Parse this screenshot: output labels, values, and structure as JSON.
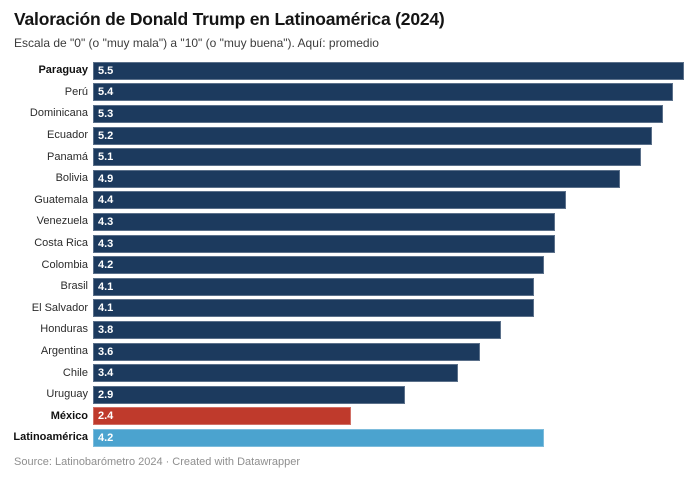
{
  "header": {
    "title": "Valoración de Donald Trump en Latinoamérica (2024)",
    "subtitle": "Escala de \"0\" (o \"muy mala\") a \"10\" (o \"muy buena\"). Aquí: promedio"
  },
  "colors": {
    "default": "#1c3a5e",
    "highlight_red": "#bf3a2c",
    "highlight_blue": "#4ba3cf",
    "value_label": "#ffffff"
  },
  "chart_data": {
    "type": "bar",
    "orientation": "horizontal",
    "title": "Valoración de Donald Trump en Latinoamérica (2024)",
    "subtitle": "Escala de \"0\" (o \"muy mala\") a \"10\" (o \"muy buena\"). Aquí: promedio",
    "xlabel": "",
    "ylabel": "",
    "xmin": 0,
    "xmax": 5.5,
    "grid": false,
    "legend": false,
    "value_labels": "inside-left, one decimal",
    "categories": [
      "Paraguay",
      "Perú",
      "Dominicana",
      "Ecuador",
      "Panamá",
      "Bolivia",
      "Guatemala",
      "Venezuela",
      "Costa Rica",
      "Colombia",
      "Brasil",
      "El Salvador",
      "Honduras",
      "Argentina",
      "Chile",
      "Uruguay",
      "México",
      "Latinoamérica"
    ],
    "values": [
      5.5,
      5.4,
      5.3,
      5.2,
      5.1,
      4.9,
      4.4,
      4.3,
      4.3,
      4.2,
      4.1,
      4.1,
      3.8,
      3.6,
      3.4,
      2.9,
      2.4,
      4.2
    ],
    "rows": [
      {
        "label": "Paraguay",
        "value": 5.5,
        "bold": true,
        "color": "default"
      },
      {
        "label": "Perú",
        "value": 5.4,
        "bold": false,
        "color": "default"
      },
      {
        "label": "Dominicana",
        "value": 5.3,
        "bold": false,
        "color": "default"
      },
      {
        "label": "Ecuador",
        "value": 5.2,
        "bold": false,
        "color": "default"
      },
      {
        "label": "Panamá",
        "value": 5.1,
        "bold": false,
        "color": "default"
      },
      {
        "label": "Bolivia",
        "value": 4.9,
        "bold": false,
        "color": "default"
      },
      {
        "label": "Guatemala",
        "value": 4.4,
        "bold": false,
        "color": "default"
      },
      {
        "label": "Venezuela",
        "value": 4.3,
        "bold": false,
        "color": "default"
      },
      {
        "label": "Costa Rica",
        "value": 4.3,
        "bold": false,
        "color": "default"
      },
      {
        "label": "Colombia",
        "value": 4.2,
        "bold": false,
        "color": "default"
      },
      {
        "label": "Brasil",
        "value": 4.1,
        "bold": false,
        "color": "default"
      },
      {
        "label": "El Salvador",
        "value": 4.1,
        "bold": false,
        "color": "default"
      },
      {
        "label": "Honduras",
        "value": 3.8,
        "bold": false,
        "color": "default"
      },
      {
        "label": "Argentina",
        "value": 3.6,
        "bold": false,
        "color": "default"
      },
      {
        "label": "Chile",
        "value": 3.4,
        "bold": false,
        "color": "default"
      },
      {
        "label": "Uruguay",
        "value": 2.9,
        "bold": false,
        "color": "default"
      },
      {
        "label": "México",
        "value": 2.4,
        "bold": true,
        "color": "highlight_red"
      },
      {
        "label": "Latinoamérica",
        "value": 4.2,
        "bold": true,
        "color": "highlight_blue"
      }
    ]
  },
  "footer": {
    "source": "Source: Latinobarómetro 2024",
    "separator": "·",
    "credit": "Created with Datawrapper"
  }
}
